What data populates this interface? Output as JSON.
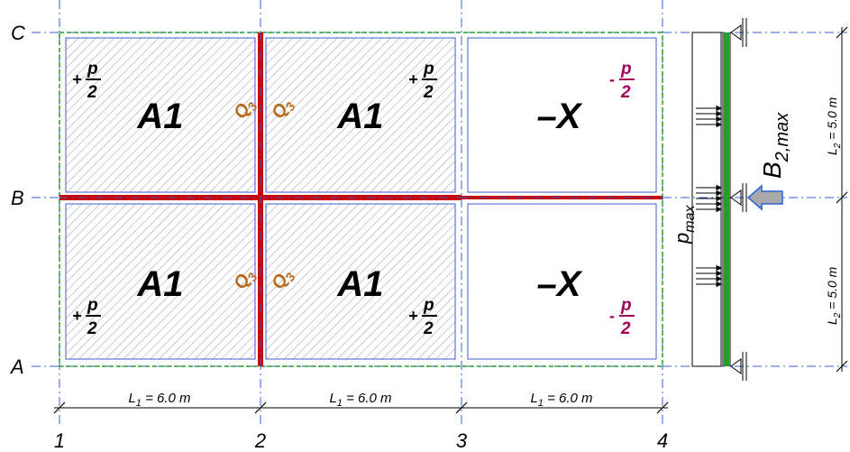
{
  "grid": {
    "rows": [
      "C",
      "B",
      "A"
    ],
    "cols": [
      "1",
      "2",
      "3",
      "4"
    ]
  },
  "panels": {
    "loaded_label": "A1",
    "unloaded_label": "–X"
  },
  "loads": {
    "plus_sign": "+",
    "minus_sign": "-",
    "p_num": "p",
    "p_den": "2"
  },
  "reactions": {
    "q_main": "Q",
    "q_sub": "3"
  },
  "dimensions": {
    "span_main": "L",
    "span_sub": "1",
    "span_value": " = 6.0 m",
    "height_main": "L",
    "height_sub": "2",
    "height_value": " = 5.0 m"
  },
  "beam": {
    "load_main": "p",
    "load_sub": "max",
    "reaction_main": "B",
    "reaction_sub": "2,max"
  },
  "colors": {
    "hatch": "#9a9a9a",
    "panel_border": "#3a5fcd",
    "beam_red": "#cc0000",
    "beam_green": "#22a022",
    "q_color": "#b86b1c",
    "minus_p_color": "#a0005a",
    "arrow_fill": "#a8a8a8",
    "arrow_stroke": "#2b63d6",
    "axis": "#3a5fcd"
  }
}
